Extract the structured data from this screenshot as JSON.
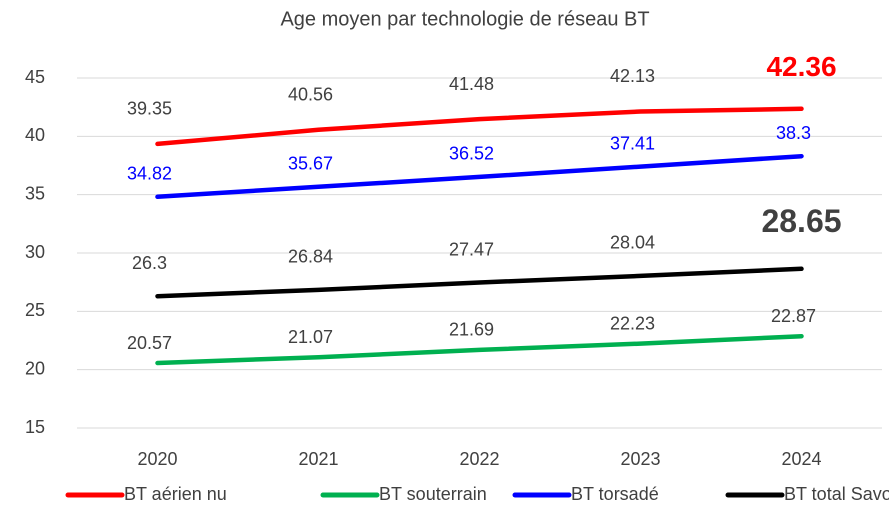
{
  "chart_data": {
    "type": "line",
    "title": "Age moyen par technologie de réseau BT",
    "categories": [
      "2020",
      "2021",
      "2022",
      "2023",
      "2024"
    ],
    "series": [
      {
        "name": "BT aérien nu",
        "color": "#ff0000",
        "values": [
          39.35,
          40.56,
          41.48,
          42.13,
          42.36
        ]
      },
      {
        "name": "BT souterrain",
        "color": "#00b050",
        "values": [
          20.57,
          21.07,
          21.69,
          22.23,
          22.87
        ]
      },
      {
        "name": "BT torsadé",
        "color": "#0000ff",
        "values": [
          34.82,
          35.67,
          36.52,
          37.41,
          38.3
        ]
      },
      {
        "name": "BT total Savoie",
        "color": "#000000",
        "values": [
          26.3,
          26.84,
          27.47,
          28.04,
          28.65
        ]
      }
    ],
    "ylim": [
      15,
      45
    ],
    "yticks": [
      15,
      20,
      25,
      30,
      35,
      40,
      45
    ],
    "grid": true,
    "legend": "bottom"
  }
}
